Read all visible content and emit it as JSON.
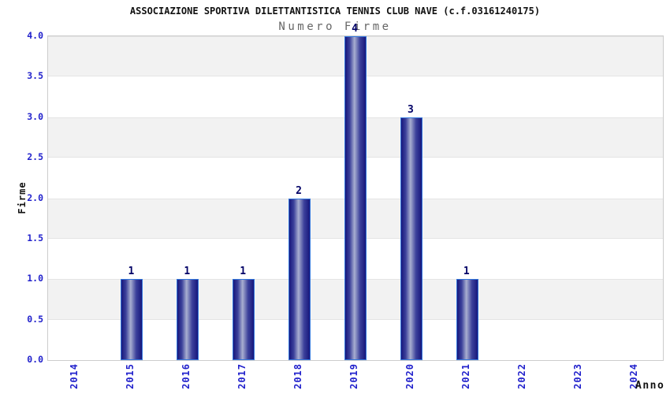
{
  "title": "ASSOCIAZIONE SPORTIVA DILETTANTISTICA TENNIS CLUB NAVE (c.f.03161240175)",
  "subtitle": "Numero Firme",
  "chart_data": {
    "type": "bar",
    "title": "ASSOCIAZIONE SPORTIVA DILETTANTISTICA TENNIS CLUB NAVE (c.f.03161240175)",
    "subtitle": "Numero Firme",
    "xlabel": "Anno",
    "ylabel": "Firme",
    "categories": [
      "2014",
      "2015",
      "2016",
      "2017",
      "2018",
      "2019",
      "2020",
      "2021",
      "2022",
      "2023",
      "2024"
    ],
    "values": [
      0,
      1,
      1,
      1,
      2,
      4,
      3,
      1,
      0,
      0,
      0
    ],
    "bar_labels": [
      "",
      "1",
      "1",
      "1",
      "2",
      "4",
      "3",
      "1",
      "",
      "",
      ""
    ],
    "ylim": [
      0,
      4
    ],
    "ytick_step": 0.5,
    "yticks": [
      "4.0",
      "3.5",
      "3.0",
      "2.5",
      "2.0",
      "1.5",
      "1.0",
      "0.5",
      "0.0"
    ],
    "grid": "alternating-horizontal-bands",
    "legend": "none"
  },
  "colors": {
    "title": "#111111",
    "subtitle": "#666666",
    "tick_labels": "#2222cc",
    "axis_titles": "#111111",
    "value_labels": "#000066",
    "plot_border": "#cccccc",
    "band_gray": "#f2f2f2",
    "band_edge": "#e4e4e4",
    "bar_border": "#3377dd",
    "bar_dark": "#17177c",
    "bar_light": "#a8aed0",
    "background": "#ffffff"
  }
}
